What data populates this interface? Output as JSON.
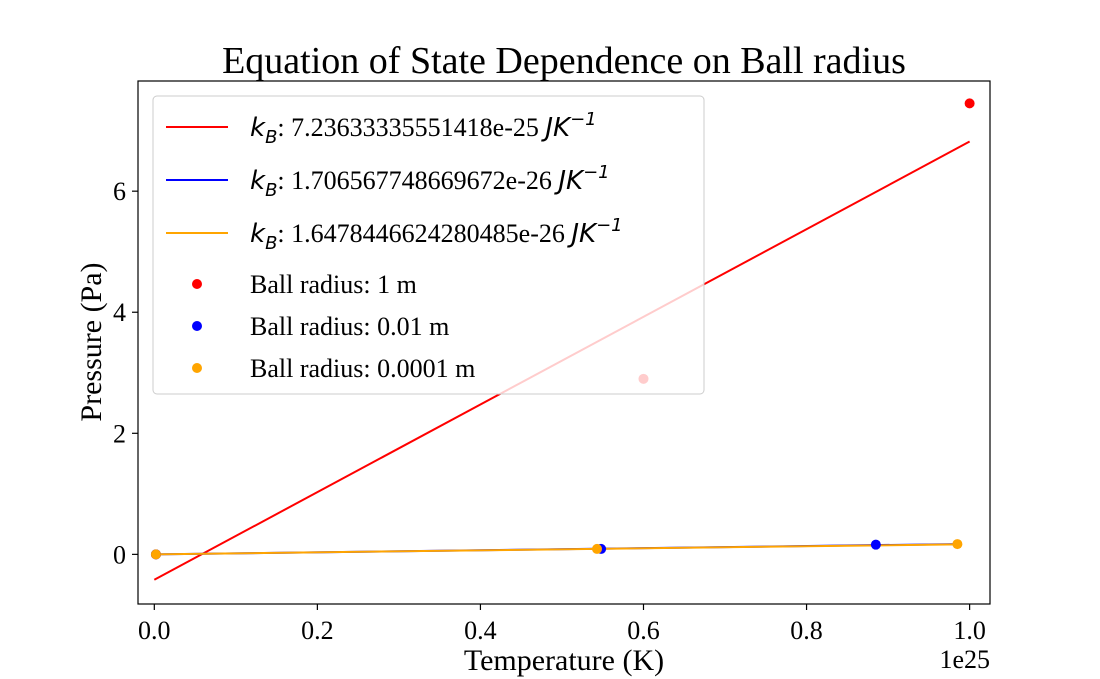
{
  "chart_data": {
    "type": "scatter",
    "title": "Equation of State Dependence on Ball radius",
    "xlabel": "Temperature (K)",
    "ylabel": "Pressure (Pa)",
    "x_offset_label": "1e25",
    "xlim": [
      -0.02,
      1.025
    ],
    "ylim": [
      -0.82,
      7.82
    ],
    "x_ticks": [
      0.0,
      0.2,
      0.4,
      0.6,
      0.8,
      1.0
    ],
    "x_tick_labels": [
      "0.0",
      "0.2",
      "0.4",
      "0.6",
      "0.8",
      "1.0"
    ],
    "y_ticks": [
      0,
      2,
      4,
      6
    ],
    "y_tick_labels": [
      "0",
      "2",
      "4",
      "6"
    ],
    "grid": false,
    "legend_position": "upper-left",
    "fit_lines": [
      {
        "label_value": "7.23633335551418e-25",
        "label_unit_base": "JK",
        "label_unit_exp": "−1",
        "color": "#ff0000",
        "x": [
          0.0,
          1.0
        ],
        "y": [
          -0.42,
          6.82
        ]
      },
      {
        "label_value": "1.706567748669672e-26",
        "label_unit_base": "JK",
        "label_unit_exp": "−1",
        "color": "#0000ff",
        "x": [
          0.0,
          0.985
        ],
        "y": [
          0.0,
          0.17
        ]
      },
      {
        "label_value": "1.6478446624280485e-26",
        "label_unit_base": "JK",
        "label_unit_exp": "−1",
        "color": "#ffa500",
        "x": [
          0.0,
          0.985
        ],
        "y": [
          0.0,
          0.165
        ]
      }
    ],
    "series": [
      {
        "name": "Ball radius: 1 m",
        "color": "#ff0000",
        "points": [
          [
            0.002,
            0.0
          ],
          [
            0.6,
            2.9
          ],
          [
            1.0,
            7.45
          ]
        ]
      },
      {
        "name": "Ball radius: 0.01 m",
        "color": "#0000ff",
        "points": [
          [
            0.002,
            0.0
          ],
          [
            0.548,
            0.09
          ],
          [
            0.885,
            0.16
          ]
        ]
      },
      {
        "name": "Ball radius: 0.0001 m",
        "color": "#ffa500",
        "points": [
          [
            0.002,
            0.0
          ],
          [
            0.543,
            0.09
          ],
          [
            0.985,
            0.17
          ]
        ]
      }
    ],
    "legend_kb_symbol": "k",
    "legend_kb_sub": "B",
    "legend_kb_colon": ": "
  }
}
